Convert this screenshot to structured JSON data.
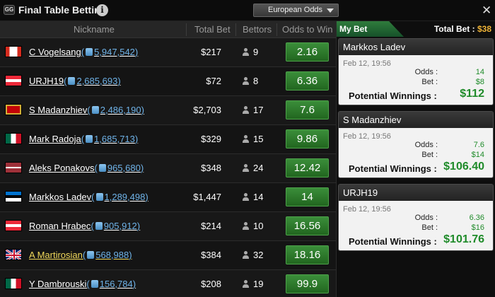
{
  "app": {
    "title": "Final Table Betting",
    "logo_text": "GG",
    "odds_format": "European Odds",
    "close_symbol": "✕"
  },
  "table": {
    "columns": [
      "Nickname",
      "Total Bet",
      "Bettors",
      "Odds to Win"
    ],
    "rows": [
      {
        "flag": "canada",
        "name": "C Vogelsang",
        "stack": "5,947,542",
        "total_bet": "$217",
        "bettors": "9",
        "odds": "2.16"
      },
      {
        "flag": "austria",
        "name": "URJH19",
        "stack": "2,685,693",
        "total_bet": "$72",
        "bettors": "8",
        "odds": "6.36"
      },
      {
        "flag": "montenegro",
        "name": "S Madanzhiev",
        "stack": "2,486,190",
        "total_bet": "$2,703",
        "bettors": "17",
        "odds": "7.6"
      },
      {
        "flag": "mexico",
        "name": "Mark Radoja",
        "stack": "1,685,713",
        "total_bet": "$329",
        "bettors": "15",
        "odds": "9.86"
      },
      {
        "flag": "latvia",
        "name": "Aleks Ponakovs",
        "stack": "965,680",
        "total_bet": "$348",
        "bettors": "24",
        "odds": "12.42"
      },
      {
        "flag": "estonia",
        "name": "Markkos Ladev",
        "stack": "1,289,498",
        "total_bet": "$1,447",
        "bettors": "14",
        "odds": "14"
      },
      {
        "flag": "austria",
        "name": "Roman Hrabec",
        "stack": "905,912",
        "total_bet": "$214",
        "bettors": "10",
        "odds": "16.56"
      },
      {
        "flag": "uk",
        "name": "A Martirosian",
        "stack": "568,988",
        "total_bet": "$384",
        "bettors": "32",
        "odds": "18.16",
        "highlighted": true
      },
      {
        "flag": "mexico",
        "name": "Y Dambrouski",
        "stack": "156,784",
        "total_bet": "$208",
        "bettors": "19",
        "odds": "99.9"
      }
    ]
  },
  "my_bet": {
    "tab_label": "My Bet",
    "total_bet_label": "Total Bet : ",
    "total_bet_value": "$38",
    "odds_label": "Odds :",
    "bet_label": "Bet :",
    "winnings_label": "Potential Winnings :",
    "bets": [
      {
        "player": "Markkos Ladev",
        "date": "Feb 12, 19:56",
        "odds": "14",
        "bet": "$8",
        "winnings": "$112"
      },
      {
        "player": "S Madanzhiev",
        "date": "Feb 12, 19:56",
        "odds": "7.6",
        "bet": "$14",
        "winnings": "$106.40"
      },
      {
        "player": "URJH19",
        "date": "Feb 12, 19:56",
        "odds": "6.36",
        "bet": "$16",
        "winnings": "$101.76"
      }
    ]
  },
  "colors": {
    "odds_green": "#2d7a2b",
    "winnings_green": "#1f8b2a",
    "total_bet_gold": "#f0b437",
    "stack_blue": "#6fb3e8",
    "highlight_yellow": "#f0d85a"
  }
}
